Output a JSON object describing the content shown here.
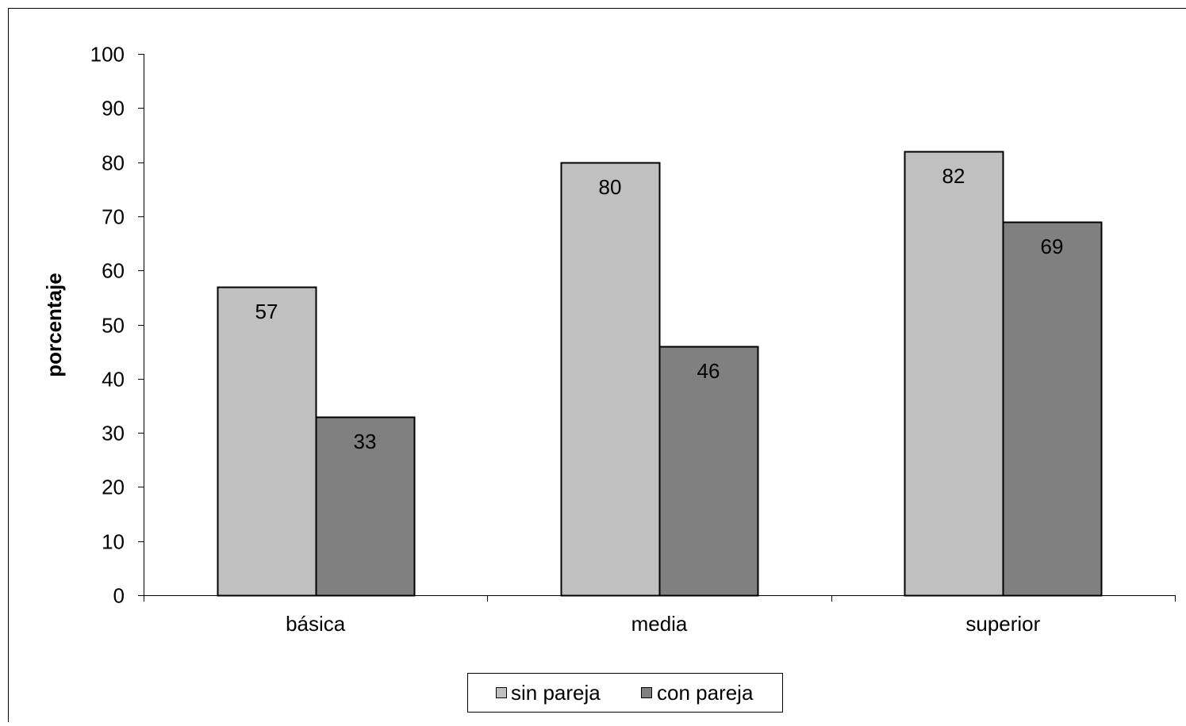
{
  "chart_data": {
    "type": "bar",
    "categories": [
      "básica",
      "media",
      "superior"
    ],
    "series": [
      {
        "name": "sin pareja",
        "values": [
          57,
          80,
          82
        ],
        "color": "#c0c0c0"
      },
      {
        "name": "con pareja",
        "values": [
          33,
          46,
          69
        ],
        "color": "#808080"
      }
    ],
    "ylabel": "porcentaje",
    "xlabel": "",
    "ylim": [
      0,
      100
    ],
    "yticks": [
      "0",
      "10",
      "20",
      "30",
      "40",
      "50",
      "60",
      "70",
      "80",
      "90",
      "100"
    ],
    "grid": false,
    "legend_position": "bottom",
    "data_labels": true
  }
}
